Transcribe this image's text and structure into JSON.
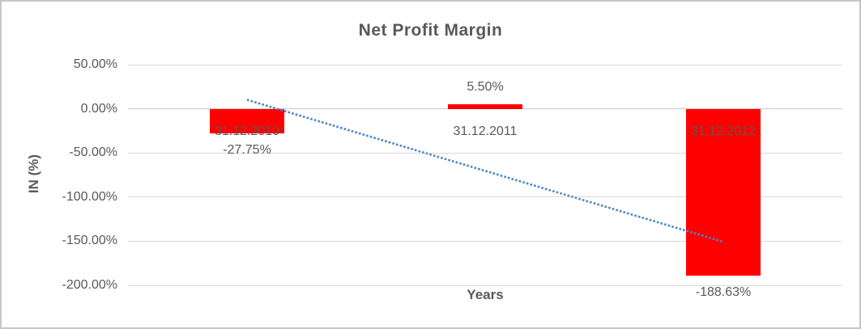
{
  "window": {
    "background": "#FFFFFF",
    "border_color": "#C6C6C6"
  },
  "chart_data": {
    "type": "bar",
    "title": "Net Profit Margin",
    "xlabel": "Years",
    "ylabel": "IN (%)",
    "categories": [
      "31.12.2010",
      "31.12.2011",
      "31.12.2012"
    ],
    "values": [
      -27.75,
      5.5,
      -188.63
    ],
    "data_labels": [
      "-27.75%",
      "5.50%",
      "-188.63%"
    ],
    "ylim": [
      -200,
      50
    ],
    "ytick_step": 50,
    "ytick_labels": [
      "50.00%",
      "0.00%",
      "-50.00%",
      "-100.00%",
      "-150.00%",
      "-200.00%"
    ],
    "grid": true,
    "legend": "none",
    "bar_color": "#FF0000",
    "text_color": "#595959",
    "gridline_color": "#D9D9D9",
    "zeroline_color": "#C9C9C9",
    "trendline": {
      "type": "linear",
      "style": "dotted",
      "color": "#4A86C8",
      "start_value": 10.15,
      "end_value": -150.73
    }
  }
}
